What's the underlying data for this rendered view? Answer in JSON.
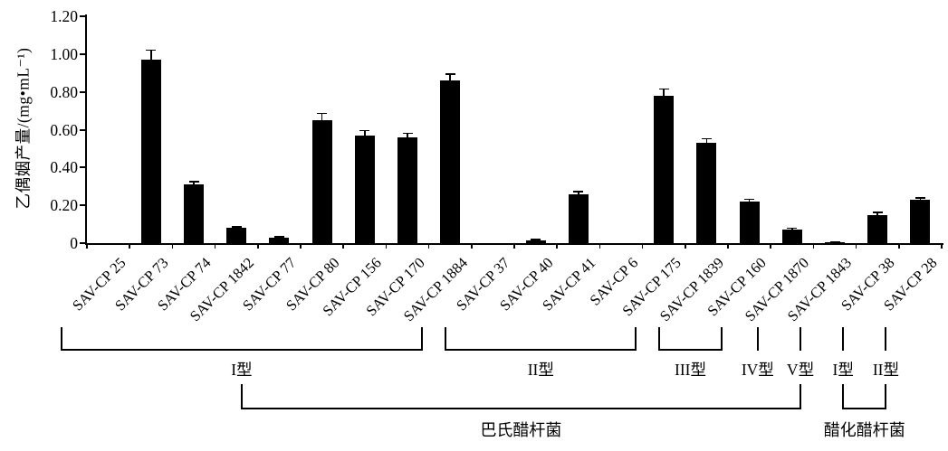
{
  "chart_data": {
    "type": "bar",
    "title": "",
    "xlabel": "",
    "ylabel": "乙偶姻产量/(mg•mL⁻¹)",
    "ylim": [
      0,
      1.2
    ],
    "ytick_labels": [
      "0",
      "0.20",
      "0.40",
      "0.60",
      "0.80",
      "1.00",
      "1.20"
    ],
    "grid": false,
    "legend": null,
    "bar_color": "#000000",
    "error_bars": "upper caps",
    "categories": [
      "SAV-CP 25",
      "SAV-CP 73",
      "SAV-CP 74",
      "SAV-CP 1842",
      "SAV-CP 77",
      "SAV-CP 80",
      "SAV-CP 156",
      "SAV-CP 170",
      "SAV-CP 1884",
      "SAV-CP 37",
      "SAV-CP 40",
      "SAV-CP 41",
      "SAV-CP 6",
      "SAV-CP 175",
      "SAV-CP 1839",
      "SAV-CP 160",
      "SAV-CP 1870",
      "SAV-CP 1843",
      "SAV-CP 38",
      "SAV-CP 28"
    ],
    "values": [
      0,
      0.97,
      0.31,
      0.08,
      0.03,
      0.65,
      0.57,
      0.56,
      0.86,
      0,
      0.015,
      0.26,
      0,
      0.78,
      0.53,
      0.22,
      0.07,
      0.005,
      0.15,
      0.23
    ],
    "errors": [
      0,
      0.05,
      0.015,
      0.006,
      0.004,
      0.035,
      0.025,
      0.022,
      0.035,
      0,
      0.004,
      0.012,
      0,
      0.035,
      0.022,
      0.012,
      0.008,
      0.003,
      0.012,
      0.008
    ],
    "strain_type_groups": [
      {
        "label": "I型",
        "start_index": 0,
        "end_index": 8
      },
      {
        "label": "II型",
        "start_index": 9,
        "end_index": 13
      },
      {
        "label": "III型",
        "start_index": 14,
        "end_index": 15
      },
      {
        "label": "IV型",
        "start_index": 16,
        "end_index": 16
      },
      {
        "label": "V型",
        "start_index": 17,
        "end_index": 17
      },
      {
        "label": "I型",
        "start_index": 18,
        "end_index": 18
      },
      {
        "label": "II型",
        "start_index": 19,
        "end_index": 19
      }
    ],
    "species_groups": [
      {
        "label": "巴氏醋杆菌",
        "start_type_index": 0,
        "end_type_index": 4
      },
      {
        "label": "醋化醋杆菌",
        "start_type_index": 5,
        "end_type_index": 6
      }
    ]
  }
}
